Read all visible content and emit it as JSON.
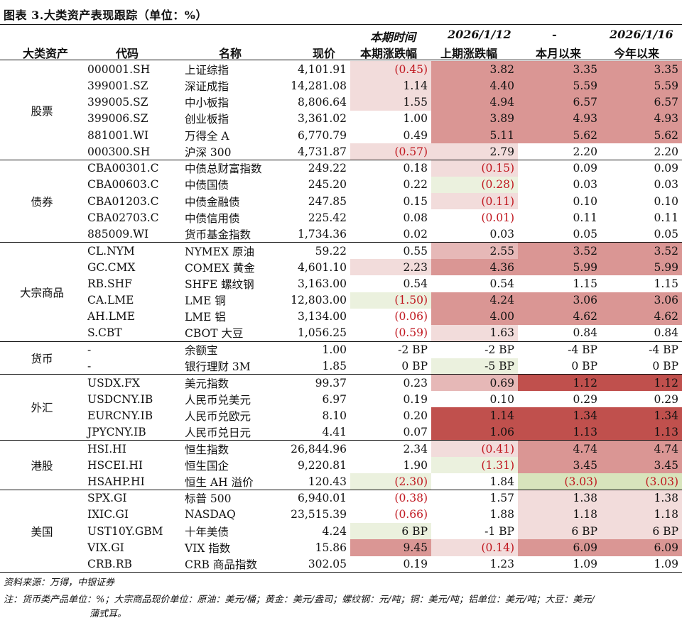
{
  "title": "图表 3.大类资产表现跟踪（单位：%）",
  "headers": {
    "asset_class": "大类资产",
    "code": "代码",
    "name": "名称",
    "price": "现价",
    "col1_top": "本期时间",
    "col1_bottom": "本期涨跌幅",
    "col2_top": "2026/1/12",
    "col2_bottom": "上期涨跌幅",
    "col3_top": "-",
    "col3_bottom": "本月以来",
    "col4_top": "2026/1/16",
    "col4_bottom": "今年以来"
  },
  "groups": [
    {
      "name": "股票",
      "rows": [
        {
          "code": "000001.SH",
          "name": "上证综指",
          "price": "4,101.91",
          "cur": "(0.45)",
          "prev": "3.82",
          "mtd": "3.35",
          "ytd": "3.35"
        },
        {
          "code": "399001.SZ",
          "name": "深证成指",
          "price": "14,281.08",
          "cur": "1.14",
          "prev": "4.40",
          "mtd": "5.59",
          "ytd": "5.59"
        },
        {
          "code": "399005.SZ",
          "name": "中小板指",
          "price": "8,806.64",
          "cur": "1.55",
          "prev": "4.94",
          "mtd": "6.57",
          "ytd": "6.57"
        },
        {
          "code": "399006.SZ",
          "name": "创业板指",
          "price": "3,361.02",
          "cur": "1.00",
          "prev": "3.89",
          "mtd": "4.93",
          "ytd": "4.93"
        },
        {
          "code": "881001.WI",
          "name": "万得全 A",
          "price": "6,770.79",
          "cur": "0.49",
          "prev": "5.11",
          "mtd": "5.62",
          "ytd": "5.62"
        },
        {
          "code": "000300.SH",
          "name": "沪深 300",
          "price": "4,731.87",
          "cur": "(0.57)",
          "prev": "2.79",
          "mtd": "2.20",
          "ytd": "2.20"
        }
      ]
    },
    {
      "name": "债券",
      "rows": [
        {
          "code": "CBA00301.C",
          "name": "中债总财富指数",
          "price": "249.22",
          "cur": "0.18",
          "prev": "(0.15)",
          "mtd": "0.09",
          "ytd": "0.09"
        },
        {
          "code": "CBA00603.C",
          "name": "中债国债",
          "price": "245.20",
          "cur": "0.22",
          "prev": "(0.28)",
          "mtd": "0.03",
          "ytd": "0.03"
        },
        {
          "code": "CBA01203.C",
          "name": "中债金融债",
          "price": "247.85",
          "cur": "0.15",
          "prev": "(0.11)",
          "mtd": "0.10",
          "ytd": "0.10"
        },
        {
          "code": "CBA02703.C",
          "name": "中债信用债",
          "price": "225.42",
          "cur": "0.08",
          "prev": "(0.01)",
          "mtd": "0.11",
          "ytd": "0.11"
        },
        {
          "code": "885009.WI",
          "name": "货币基金指数",
          "price": "1,734.36",
          "cur": "0.02",
          "prev": "0.03",
          "mtd": "0.05",
          "ytd": "0.05"
        }
      ]
    },
    {
      "name": "大宗商品",
      "rows": [
        {
          "code": "CL.NYM",
          "name": "NYMEX 原油",
          "price": "59.22",
          "cur": "0.55",
          "prev": "2.55",
          "mtd": "3.52",
          "ytd": "3.52"
        },
        {
          "code": "GC.CMX",
          "name": "COMEX 黄金",
          "price": "4,601.10",
          "cur": "2.23",
          "prev": "4.36",
          "mtd": "5.99",
          "ytd": "5.99"
        },
        {
          "code": "RB.SHF",
          "name": "SHFE 螺纹钢",
          "price": "3,163.00",
          "cur": "0.54",
          "prev": "0.54",
          "mtd": "1.15",
          "ytd": "1.15"
        },
        {
          "code": "CA.LME",
          "name": "LME 铜",
          "price": "12,803.00",
          "cur": "(1.50)",
          "prev": "4.24",
          "mtd": "3.06",
          "ytd": "3.06"
        },
        {
          "code": "AH.LME",
          "name": "LME 铝",
          "price": "3,134.00",
          "cur": "(0.06)",
          "prev": "4.00",
          "mtd": "4.62",
          "ytd": "4.62"
        },
        {
          "code": "S.CBT",
          "name": "CBOT 大豆",
          "price": "1,056.25",
          "cur": "(0.59)",
          "prev": "1.63",
          "mtd": "0.84",
          "ytd": "0.84"
        }
      ]
    },
    {
      "name": "货币",
      "rows": [
        {
          "code": "-",
          "name": "余额宝",
          "price": "1.00",
          "cur": "-2 BP",
          "prev": "-2 BP",
          "mtd": "-4 BP",
          "ytd": "-4 BP"
        },
        {
          "code": "-",
          "name": "银行理财 3M",
          "price": "1.85",
          "cur": "0 BP",
          "prev": "-5 BP",
          "mtd": "0 BP",
          "ytd": "0 BP"
        }
      ]
    },
    {
      "name": "外汇",
      "rows": [
        {
          "code": "USDX.FX",
          "name": "美元指数",
          "price": "99.37",
          "cur": "0.23",
          "prev": "0.69",
          "mtd": "1.12",
          "ytd": "1.12"
        },
        {
          "code": "USDCNY.IB",
          "name": "人民币兑美元",
          "price": "6.97",
          "cur": "0.19",
          "prev": "0.10",
          "mtd": "0.29",
          "ytd": "0.29"
        },
        {
          "code": "EURCNY.IB",
          "name": "人民币兑欧元",
          "price": "8.10",
          "cur": "0.20",
          "prev": "1.14",
          "mtd": "1.34",
          "ytd": "1.34"
        },
        {
          "code": "JPYCNY.IB",
          "name": "人民币兑日元",
          "price": "4.41",
          "cur": "0.07",
          "prev": "1.06",
          "mtd": "1.13",
          "ytd": "1.13"
        }
      ]
    },
    {
      "name": "港股",
      "rows": [
        {
          "code": "HSI.HI",
          "name": "恒生指数",
          "price": "26,844.96",
          "cur": "2.34",
          "prev": "(0.41)",
          "mtd": "4.74",
          "ytd": "4.74"
        },
        {
          "code": "HSCEI.HI",
          "name": "恒生国企",
          "price": "9,220.81",
          "cur": "1.90",
          "prev": "(1.31)",
          "mtd": "3.45",
          "ytd": "3.45"
        },
        {
          "code": "HSAHP.HI",
          "name": "恒生 AH 溢价",
          "price": "120.43",
          "cur": "(2.30)",
          "prev": "1.84",
          "mtd": "(3.03)",
          "ytd": "(3.03)"
        }
      ]
    },
    {
      "name": "美国",
      "rows": [
        {
          "code": "SPX.GI",
          "name": "标普 500",
          "price": "6,940.01",
          "cur": "(0.38)",
          "prev": "1.57",
          "mtd": "1.38",
          "ytd": "1.38"
        },
        {
          "code": "IXIC.GI",
          "name": "NASDAQ",
          "price": "23,515.39",
          "cur": "(0.66)",
          "prev": "1.88",
          "mtd": "1.18",
          "ytd": "1.18"
        },
        {
          "code": "UST10Y.GBM",
          "name": "十年美债",
          "price": "4.24",
          "cur": "6 BP",
          "prev": "-1 BP",
          "mtd": "6 BP",
          "ytd": "6 BP"
        },
        {
          "code": "VIX.GI",
          "name": "VIX 指数",
          "price": "15.86",
          "cur": "9.45",
          "prev": "(0.14)",
          "mtd": "6.09",
          "ytd": "6.09"
        },
        {
          "code": "CRB.RB",
          "name": "CRB 商品指数",
          "price": "302.05",
          "cur": "0.19",
          "prev": "1.23",
          "mtd": "1.09",
          "ytd": "1.09"
        }
      ]
    }
  ],
  "cell_shading": [
    [
      [
        "h1",
        "h3",
        "h3",
        "h3"
      ],
      [
        "h1",
        "h3",
        "h3",
        "h3"
      ],
      [
        "h1",
        "h3",
        "h3",
        "h3"
      ],
      [
        "",
        "h3",
        "h3",
        "h3"
      ],
      [
        "",
        "h3",
        "h3",
        "h3"
      ],
      [
        "h1",
        "h1",
        "",
        ""
      ]
    ],
    [
      [
        "",
        "h1",
        "",
        ""
      ],
      [
        "",
        "g1",
        "",
        ""
      ],
      [
        "",
        "h1",
        "",
        ""
      ],
      [
        "",
        "",
        "",
        ""
      ],
      [
        "",
        "",
        "",
        ""
      ]
    ],
    [
      [
        "",
        "h2",
        "h3",
        "h3"
      ],
      [
        "h1",
        "h3",
        "h3",
        "h3"
      ],
      [
        "",
        "",
        "",
        ""
      ],
      [
        "g1",
        "h3",
        "h3",
        "h3"
      ],
      [
        "",
        "h3",
        "h3",
        "h3"
      ],
      [
        "",
        "h1",
        "",
        ""
      ]
    ],
    [
      [
        "",
        "",
        "",
        ""
      ],
      [
        "",
        "g1",
        "",
        ""
      ]
    ],
    [
      [
        "",
        "h2",
        "h4",
        "h4"
      ],
      [
        "",
        "",
        "",
        ""
      ],
      [
        "",
        "h4",
        "h4",
        "h4"
      ],
      [
        "",
        "h4",
        "h4",
        "h4"
      ]
    ],
    [
      [
        "",
        "h1",
        "h3",
        "h3"
      ],
      [
        "",
        "g1",
        "h3",
        "h3"
      ],
      [
        "g1",
        "",
        "g2",
        "g2"
      ]
    ],
    [
      [
        "",
        "",
        "h1",
        "h1"
      ],
      [
        "",
        "",
        "h1",
        "h1"
      ],
      [
        "g1",
        "",
        "h1",
        "h1"
      ],
      [
        "h3",
        "h1",
        "h3",
        "h3"
      ],
      [
        "",
        "",
        "",
        ""
      ]
    ]
  ],
  "source": "资料来源：万得，中银证券",
  "note_line1": "注：货币类产品单位：%；大宗商品现价单位：原油：美元/桶；黄金：美元/盎司；螺纹钢：元/吨；铜：美元/吨；铝单位：美元/吨；大豆：美元/",
  "note_line2": "蒲式耳。"
}
